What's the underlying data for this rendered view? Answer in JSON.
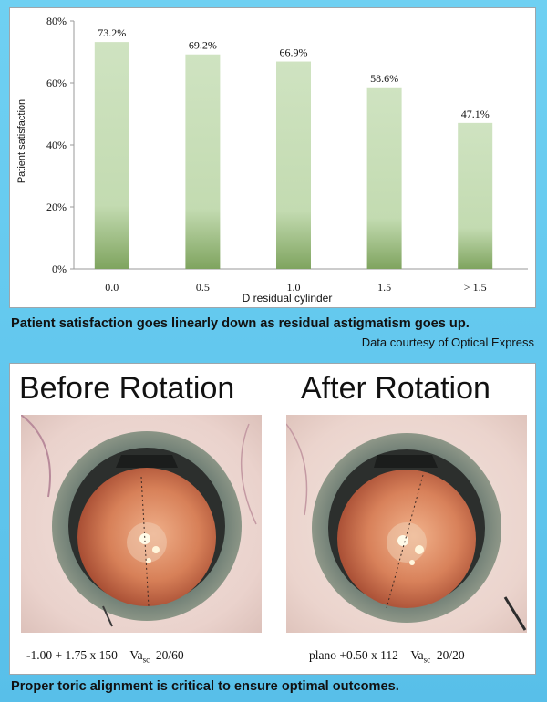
{
  "chart_data": {
    "type": "bar",
    "categories": [
      "0.0",
      "0.5",
      "1.0",
      "1.5",
      "> 1.5"
    ],
    "values": [
      73.2,
      69.2,
      66.9,
      58.6,
      47.1
    ],
    "value_labels": [
      "73.2%",
      "69.2%",
      "66.9%",
      "58.6%",
      "47.1%"
    ],
    "y_ticks": [
      "0%",
      "20%",
      "40%",
      "60%",
      "80%"
    ],
    "ylim": [
      0,
      80
    ],
    "xlabel": "D residual cylinder",
    "ylabel": "Patient satisfaction",
    "grid": false,
    "bar_color": "#c9dfba",
    "bar_color_dark": "#7fa45f"
  },
  "captions": {
    "chart_caption": "Patient satisfaction goes linearly down as residual astigmatism goes up.",
    "credit": "Data courtesy of Optical Express",
    "bottom_caption": "Proper toric alignment is critical to ensure optimal outcomes."
  },
  "photos": {
    "before_title": "Before Rotation",
    "after_title": "After Rotation",
    "before_rx_main": "-1.00 + 1.75  x 150",
    "before_va": "Va",
    "before_va_sub": "sc",
    "before_va_value": "20/60",
    "after_rx_main": "plano +0.50  x 112",
    "after_va": "Va",
    "after_va_sub": "sc",
    "after_va_value": "20/20"
  }
}
